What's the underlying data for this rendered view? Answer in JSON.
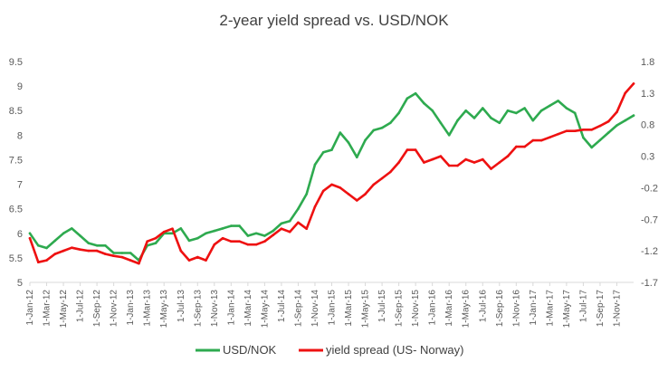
{
  "chart_data": {
    "type": "line",
    "title": "2-year yield spread vs. USD/NOK",
    "xlabel": "",
    "ylabel": "",
    "y_left": {
      "min": 5,
      "max": 9.5,
      "ticks": [
        "5",
        "5.5",
        "6",
        "6.5",
        "7",
        "7.5",
        "8",
        "8.5",
        "9",
        "9.5"
      ]
    },
    "y_right": {
      "min": -1.7,
      "max": 1.8,
      "ticks": [
        "-1.7",
        "-1.2",
        "-0.7",
        "-0.2",
        "0.3",
        "0.8",
        "1.3",
        "1.8"
      ]
    },
    "x_tick_labels": [
      "1-Jan-12",
      "1-Mar-12",
      "1-May-12",
      "1-Jul-12",
      "1-Sep-12",
      "1-Nov-12",
      "1-Jan-13",
      "1-Mar-13",
      "1-May-13",
      "1-Jul-13",
      "1-Sep-13",
      "1-Nov-13",
      "1-Jan-14",
      "1-Mar-14",
      "1-May-14",
      "1-Jul-14",
      "1-Sep-14",
      "1-Nov-14",
      "1-Jan-15",
      "1-Mar-15",
      "1-May-15",
      "1-Jul-15",
      "1-Sep-15",
      "1-Nov-15",
      "1-Jan-16",
      "1-Mar-16",
      "1-May-16",
      "1-Jul-16",
      "1-Sep-16",
      "1-Nov-16",
      "1-Jan-17",
      "1-Mar-17",
      "1-May-17",
      "1-Jul-17",
      "1-Sep-17",
      "1-Nov-17"
    ],
    "x_months": [
      0,
      1,
      2,
      3,
      4,
      5,
      6,
      7,
      8,
      9,
      10,
      11,
      12,
      13,
      14,
      15,
      16,
      17,
      18,
      19,
      20,
      21,
      22,
      23,
      24,
      25,
      26,
      27,
      28,
      29,
      30,
      31,
      32,
      33,
      34,
      35,
      36,
      37,
      38,
      39,
      40,
      41,
      42,
      43,
      44,
      45,
      46,
      47,
      48,
      49,
      50,
      51,
      52,
      53,
      54,
      55,
      56,
      57,
      58,
      59,
      60,
      61,
      62,
      63,
      64,
      65,
      66,
      67,
      68,
      69,
      70,
      71,
      72
    ],
    "grid": false,
    "legend_position": "bottom",
    "series": [
      {
        "name": "USD/NOK",
        "axis": "left",
        "color": "#2eaa4f",
        "values": [
          6.0,
          5.75,
          5.7,
          5.85,
          6.0,
          6.1,
          5.95,
          5.8,
          5.75,
          5.75,
          5.6,
          5.6,
          5.6,
          5.45,
          5.75,
          5.8,
          6.0,
          6.0,
          6.1,
          5.85,
          5.9,
          6.0,
          6.05,
          6.1,
          6.15,
          6.15,
          5.95,
          6.0,
          5.95,
          6.05,
          6.2,
          6.25,
          6.5,
          6.8,
          7.4,
          7.65,
          7.7,
          8.05,
          7.85,
          7.55,
          7.9,
          8.1,
          8.15,
          8.25,
          8.45,
          8.75,
          8.85,
          8.65,
          8.5,
          8.25,
          8.0,
          8.3,
          8.5,
          8.35,
          8.55,
          8.35,
          8.25,
          8.5,
          8.45,
          8.55,
          8.3,
          8.5,
          8.6,
          8.7,
          8.55,
          8.45,
          7.95,
          7.75,
          7.9,
          8.05,
          8.2,
          8.3,
          8.4
        ]
      },
      {
        "name": "yield spread (US- Norway)",
        "axis": "right",
        "color": "#ee1111",
        "values": [
          -1.0,
          -1.38,
          -1.35,
          -1.25,
          -1.2,
          -1.15,
          -1.18,
          -1.2,
          -1.2,
          -1.25,
          -1.28,
          -1.3,
          -1.35,
          -1.4,
          -1.05,
          -1.0,
          -0.9,
          -0.85,
          -1.2,
          -1.35,
          -1.3,
          -1.35,
          -1.1,
          -1.0,
          -1.05,
          -1.05,
          -1.1,
          -1.1,
          -1.05,
          -0.95,
          -0.85,
          -0.9,
          -0.75,
          -0.85,
          -0.5,
          -0.25,
          -0.15,
          -0.2,
          -0.3,
          -0.4,
          -0.3,
          -0.15,
          -0.05,
          0.05,
          0.2,
          0.4,
          0.4,
          0.2,
          0.25,
          0.3,
          0.15,
          0.15,
          0.25,
          0.2,
          0.25,
          0.1,
          0.2,
          0.3,
          0.45,
          0.45,
          0.55,
          0.55,
          0.6,
          0.65,
          0.7,
          0.7,
          0.72,
          0.72,
          0.78,
          0.85,
          1.0,
          1.3,
          1.45
        ]
      }
    ]
  }
}
